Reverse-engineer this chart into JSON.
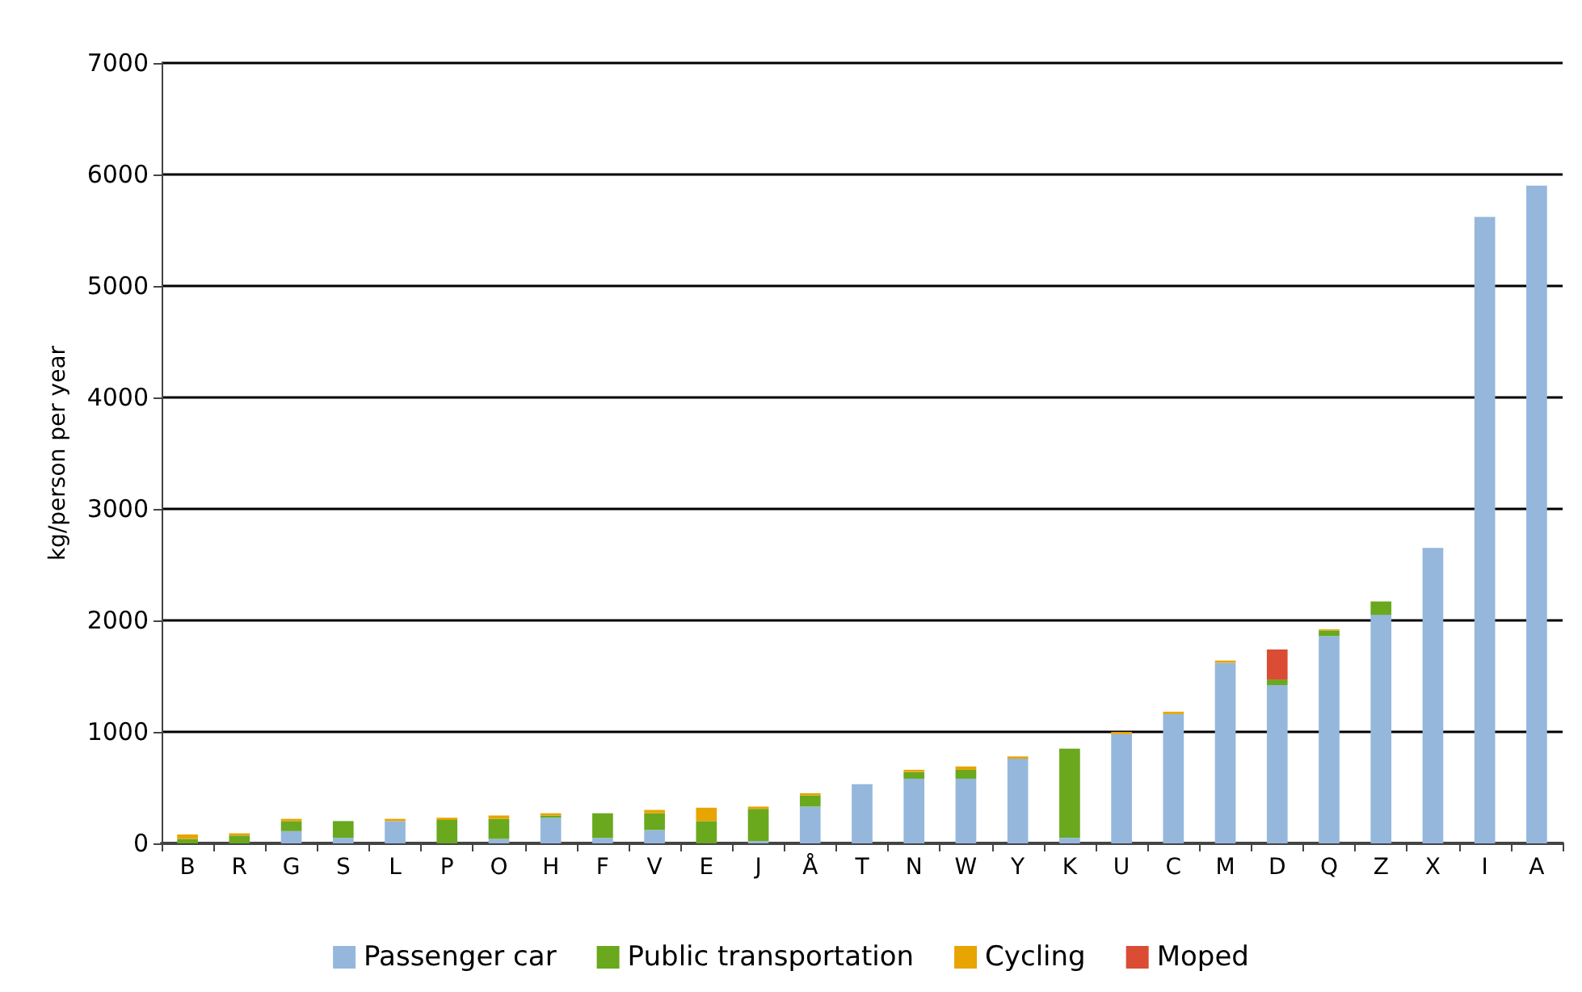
{
  "chart_data": {
    "type": "bar",
    "stacked": true,
    "ylabel": "kg/person per year",
    "categories": [
      "B",
      "R",
      "G",
      "S",
      "L",
      "P",
      "O",
      "H",
      "F",
      "V",
      "E",
      "J",
      "Å",
      "T",
      "N",
      "W",
      "Y",
      "K",
      "U",
      "C",
      "M",
      "D",
      "Q",
      "Z",
      "X",
      "I",
      "A"
    ],
    "series": [
      {
        "name": "Passenger car",
        "color": "#95b7dc",
        "values": [
          0,
          0,
          110,
          50,
          200,
          0,
          40,
          230,
          50,
          120,
          0,
          20,
          330,
          530,
          580,
          580,
          760,
          50,
          980,
          1160,
          1620,
          1420,
          1860,
          2050,
          2650,
          5620,
          5900
        ]
      },
      {
        "name": "Public transportation",
        "color": "#6aa81e",
        "values": [
          40,
          70,
          90,
          150,
          0,
          210,
          180,
          20,
          220,
          150,
          200,
          290,
          100,
          0,
          60,
          80,
          0,
          800,
          0,
          0,
          0,
          50,
          50,
          120,
          0,
          0,
          0
        ]
      },
      {
        "name": "Cycling",
        "color": "#e8a400",
        "values": [
          40,
          20,
          20,
          0,
          20,
          20,
          30,
          20,
          0,
          30,
          120,
          20,
          20,
          0,
          20,
          30,
          20,
          0,
          20,
          20,
          20,
          0,
          10,
          0,
          0,
          0,
          0
        ]
      },
      {
        "name": "Moped",
        "color": "#db4c35",
        "values": [
          null,
          null,
          null,
          null,
          null,
          null,
          null,
          null,
          null,
          null,
          null,
          null,
          null,
          null,
          null,
          null,
          null,
          null,
          null,
          null,
          null,
          270,
          null,
          null,
          null,
          null,
          null
        ]
      }
    ],
    "ylim": [
      0,
      7000
    ],
    "yticks": [
      0,
      1000,
      2000,
      3000,
      4000,
      5000,
      6000,
      7000
    ],
    "grid": "y",
    "legend": "bottom"
  }
}
